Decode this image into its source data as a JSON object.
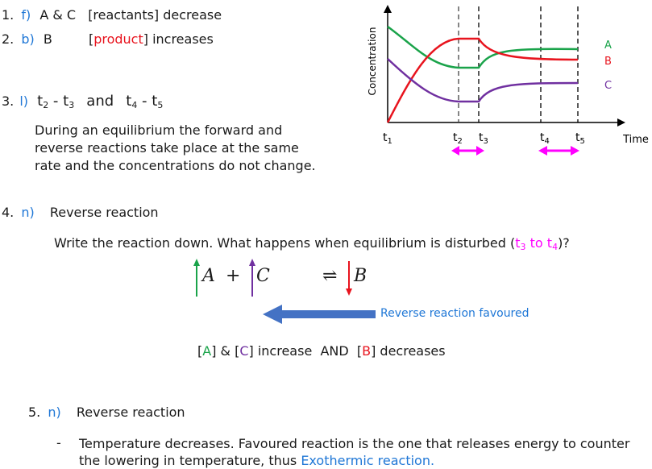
{
  "q1": {
    "num": "1.",
    "letter": "f)",
    "text_a": "A & C",
    "text_b": "[reactants] decrease"
  },
  "q2": {
    "num": "2.",
    "letter": "b)",
    "text_a": "B",
    "text_b_open": "[",
    "text_b_red": "product",
    "text_b_close": "] increases"
  },
  "q3": {
    "num": "3.",
    "letter": "l)",
    "range1_t1": "t",
    "range1_s1": "2",
    "range1_dash": " - t",
    "range1_s2": "3",
    "and": "and",
    "range2_t1": "t",
    "range2_s1": "4",
    "range2_dash": " - t",
    "range2_s2": "5",
    "paragraph": "During an equilibrium the forward and reverse reactions take place at the same rate and the concentrations do not change."
  },
  "chart": {
    "ylabel": "Concentration",
    "xlabel": "Time",
    "ticks": [
      {
        "t": "t",
        "s": "1"
      },
      {
        "t": "t",
        "s": "2"
      },
      {
        "t": "t",
        "s": "3"
      },
      {
        "t": "t",
        "s": "4"
      },
      {
        "t": "t",
        "s": "5"
      }
    ],
    "legend": {
      "A": "A",
      "B": "B",
      "C": "C"
    },
    "colors": {
      "A": "#1aa34a",
      "B": "#e8141e",
      "C": "#7030a0",
      "arrow": "#ff00ff"
    }
  },
  "chart_data": {
    "type": "line",
    "title": "",
    "xlabel": "Time",
    "ylabel": "Concentration",
    "x": [
      "t1",
      "t2",
      "t3",
      "t4",
      "t5"
    ],
    "series": [
      {
        "name": "A",
        "values": [
          0.82,
          0.46,
          0.46,
          0.66,
          0.66
        ]
      },
      {
        "name": "B",
        "values": [
          0.0,
          0.72,
          0.72,
          0.56,
          0.56
        ]
      },
      {
        "name": "C",
        "values": [
          0.58,
          0.24,
          0.24,
          0.38,
          0.38
        ]
      }
    ],
    "grid": false
  },
  "q4": {
    "num": "4.",
    "letter": "n)",
    "title": "Reverse reaction",
    "prompt_a": "Write the reaction down. What happens when equilibrium is disturbed (",
    "prompt_pink_t": "t",
    "prompt_pink_s1": "3",
    "prompt_pink_to": " to t",
    "prompt_pink_s2": "4",
    "prompt_b": ")?",
    "eq_a": "A",
    "eq_plus": "+",
    "eq_c": "C",
    "eq_arrow": "⇌",
    "eq_b": "B",
    "favoured_label": "Reverse reaction favoured",
    "summary_open1": "[",
    "summary_a": "A",
    "summary_close1": "] & [",
    "summary_c": "C",
    "summary_mid": "] increase  AND  [",
    "summary_b": "B",
    "summary_end": "] decreases"
  },
  "q5": {
    "num": "5.",
    "letter": "n)",
    "title": "Reverse reaction",
    "bullet": "-",
    "text_a": "Temperature decreases. Favoured reaction is the one that releases energy to counter the lowering in temperature, thus ",
    "text_blue": "Exothermic reaction."
  }
}
